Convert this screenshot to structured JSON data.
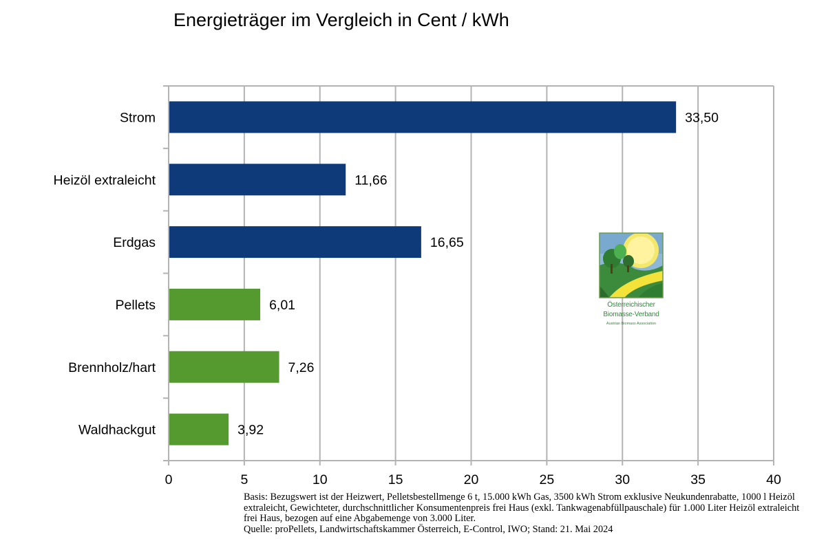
{
  "chart_data": {
    "type": "bar",
    "orientation": "horizontal",
    "title": "Energieträger im Vergleich in Cent / kWh",
    "categories": [
      "Strom",
      "Heizöl extraleicht",
      "Erdgas",
      "Pellets",
      "Brennholz/hart",
      "Waldhackgut"
    ],
    "values": [
      33.5,
      11.66,
      16.65,
      6.01,
      7.26,
      3.92
    ],
    "value_labels": [
      "33,50",
      "11,66",
      "16,65",
      "6,01",
      "7,26",
      "3,92"
    ],
    "bar_colors": [
      "#0e3a7a",
      "#0e3a7a",
      "#0e3a7a",
      "#559a2e",
      "#559a2e",
      "#559a2e"
    ],
    "xlim": [
      0,
      40
    ],
    "xticks": [
      0,
      5,
      10,
      15,
      20,
      25,
      30,
      35,
      40
    ],
    "xlabel": "",
    "ylabel": "",
    "grid": "vertical",
    "legend": "none"
  },
  "logo": {
    "line1": "Österreichischer",
    "line2": "Biomasse-Verband",
    "line3": "Austrian Biomass Association"
  },
  "footnote": {
    "basis": "Basis: Bezugswert ist der Heizwert, Pelletsbestellmenge 6 t, 15.000 kWh Gas, 3500 kWh Strom exklusive Neukundenrabatte, 1000 l Heizöl extraleicht, Gewichteter, durchschnittlicher Konsumentenpreis frei Haus (exkl. Tankwagenabfüllpauschale) für 1.000 Liter Heizöl extraleicht frei Haus, bezogen auf eine Abgabemenge von 3.000 Liter.",
    "quelle": "Quelle: proPellets, Landwirtschaftskammer Österreich, E-Control, IWO; Stand: 21. Mai 2024"
  },
  "colors": {
    "fossil": "#0e3a7a",
    "renewable": "#559a2e",
    "axis": "#b3b3b3",
    "grid": "#b3b3b3"
  }
}
